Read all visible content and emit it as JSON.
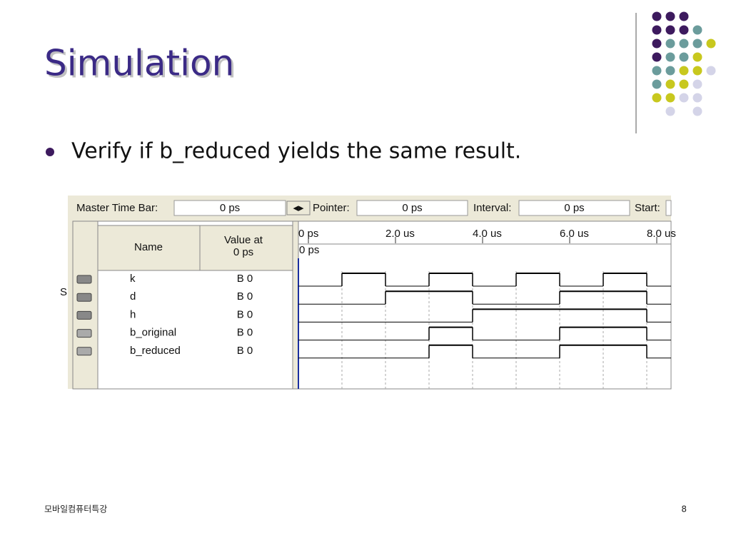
{
  "title": "Simulation",
  "bullet": "Verify if b_reduced yields the same result.",
  "footer": {
    "left": "모바일컴퓨터특강",
    "page": "8"
  },
  "side_letter": "S",
  "waveform": {
    "toolbar": [
      {
        "label": "Master Time Bar:",
        "value": "0 ps"
      },
      {
        "label": "Pointer:",
        "value": "0 ps"
      },
      {
        "label": "Interval:",
        "value": "0 ps"
      },
      {
        "label": "Start:"
      }
    ],
    "columns": {
      "name": "Name",
      "value": "Value at\n0 ps"
    },
    "time_labels": [
      "0 ps",
      "2.0 us",
      "4.0 us",
      "6.0 us",
      "8.0 us"
    ],
    "cursor_label": "0 ps",
    "signals": [
      {
        "name": "k",
        "value": "B 0",
        "kind": "input",
        "levels": [
          0,
          1,
          0,
          1,
          0,
          1,
          0,
          1,
          0
        ]
      },
      {
        "name": "d",
        "value": "B 0",
        "kind": "input",
        "levels": [
          0,
          0,
          1,
          1,
          0,
          0,
          1,
          1,
          0
        ]
      },
      {
        "name": "h",
        "value": "B 0",
        "kind": "input",
        "levels": [
          0,
          0,
          0,
          0,
          1,
          1,
          1,
          1,
          0
        ]
      },
      {
        "name": "b_original",
        "value": "B 0",
        "kind": "output",
        "levels": [
          0,
          0,
          0,
          1,
          0,
          0,
          1,
          1,
          0
        ]
      },
      {
        "name": "b_reduced",
        "value": "B 0",
        "kind": "output",
        "levels": [
          0,
          0,
          0,
          1,
          0,
          0,
          1,
          1,
          0
        ]
      }
    ]
  }
}
